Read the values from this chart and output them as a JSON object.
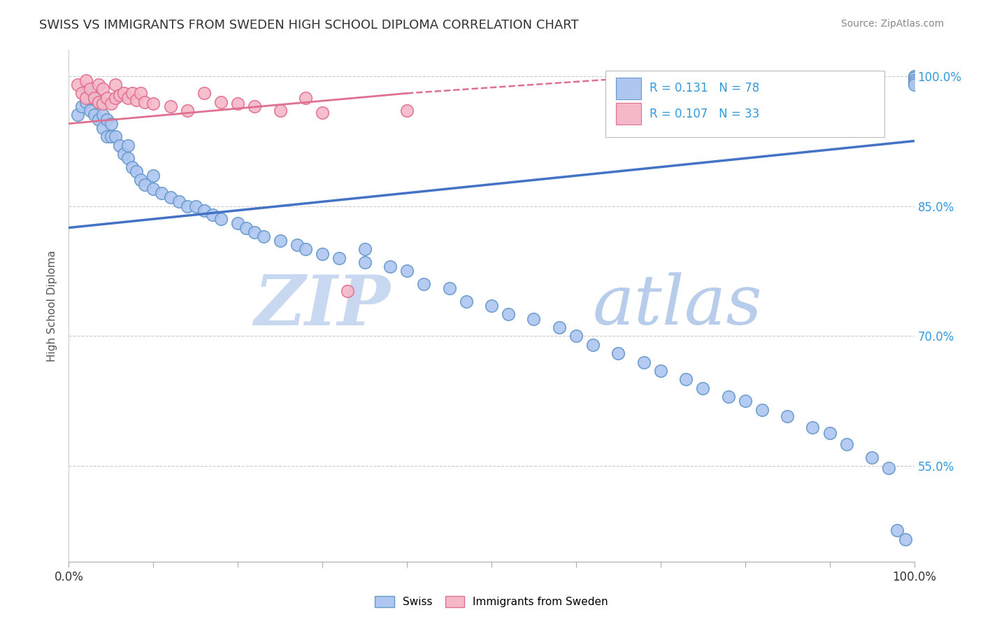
{
  "title": "SWISS VS IMMIGRANTS FROM SWEDEN HIGH SCHOOL DIPLOMA CORRELATION CHART",
  "source_text": "Source: ZipAtlas.com",
  "ylabel": "High School Diploma",
  "legend_swiss": "Swiss",
  "legend_immigrants": "Immigrants from Sweden",
  "R_swiss": 0.131,
  "N_swiss": 78,
  "R_immigrants": 0.107,
  "N_immigrants": 33,
  "swiss_color": "#aec6f0",
  "swiss_edge_color": "#6699cc",
  "immigrants_color": "#f5b8c8",
  "immigrants_edge_color": "#e07090",
  "swiss_line_color": "#4472c4",
  "immigrants_line_color": "#e07090",
  "watermark_zip_color": "#c8d8ee",
  "watermark_atlas_color": "#b0c8e8",
  "background_color": "#ffffff",
  "grid_color": "#cccccc",
  "xlim": [
    0.0,
    1.0
  ],
  "ylim": [
    0.44,
    1.03
  ],
  "yticks": [
    0.55,
    0.7,
    0.85,
    1.0
  ],
  "ytick_labels": [
    "55.0%",
    "70.0%",
    "85.0%",
    "100.0%"
  ],
  "swiss_line_x0": 0.0,
  "swiss_line_y0": 0.825,
  "swiss_line_x1": 1.0,
  "swiss_line_y1": 0.925,
  "imm_line_x0": 0.0,
  "imm_line_y0": 0.945,
  "imm_line_x1": 0.4,
  "imm_line_y1": 0.98,
  "swiss_x": [
    0.01,
    0.015,
    0.02,
    0.02,
    0.025,
    0.025,
    0.03,
    0.03,
    0.035,
    0.035,
    0.04,
    0.04,
    0.045,
    0.045,
    0.05,
    0.05,
    0.055,
    0.06,
    0.065,
    0.07,
    0.07,
    0.075,
    0.08,
    0.085,
    0.09,
    0.1,
    0.1,
    0.11,
    0.12,
    0.13,
    0.14,
    0.15,
    0.16,
    0.17,
    0.18,
    0.2,
    0.21,
    0.22,
    0.23,
    0.25,
    0.27,
    0.28,
    0.3,
    0.32,
    0.35,
    0.35,
    0.38,
    0.4,
    0.42,
    0.45,
    0.47,
    0.5,
    0.52,
    0.55,
    0.58,
    0.6,
    0.62,
    0.65,
    0.68,
    0.7,
    0.73,
    0.75,
    0.78,
    0.8,
    0.82,
    0.85,
    0.88,
    0.9,
    0.92,
    0.95,
    0.97,
    0.98,
    0.99,
    1.0,
    1.0,
    1.0,
    1.0,
    1.0
  ],
  "swiss_y": [
    0.955,
    0.965,
    0.97,
    0.985,
    0.96,
    0.975,
    0.955,
    0.975,
    0.95,
    0.97,
    0.94,
    0.955,
    0.93,
    0.95,
    0.93,
    0.945,
    0.93,
    0.92,
    0.91,
    0.905,
    0.92,
    0.895,
    0.89,
    0.88,
    0.875,
    0.87,
    0.885,
    0.865,
    0.86,
    0.855,
    0.85,
    0.85,
    0.845,
    0.84,
    0.835,
    0.83,
    0.825,
    0.82,
    0.815,
    0.81,
    0.805,
    0.8,
    0.795,
    0.79,
    0.785,
    0.8,
    0.78,
    0.775,
    0.76,
    0.755,
    0.74,
    0.735,
    0.725,
    0.72,
    0.71,
    0.7,
    0.69,
    0.68,
    0.67,
    0.66,
    0.65,
    0.64,
    0.63,
    0.625,
    0.615,
    0.608,
    0.595,
    0.588,
    0.575,
    0.56,
    0.548,
    0.476,
    0.466,
    1.0,
    0.998,
    0.995,
    0.992,
    0.99
  ],
  "imm_x": [
    0.01,
    0.015,
    0.02,
    0.02,
    0.025,
    0.03,
    0.035,
    0.035,
    0.04,
    0.04,
    0.045,
    0.05,
    0.055,
    0.055,
    0.06,
    0.065,
    0.07,
    0.075,
    0.08,
    0.085,
    0.09,
    0.1,
    0.12,
    0.14,
    0.16,
    0.18,
    0.2,
    0.22,
    0.25,
    0.28,
    0.3,
    0.33,
    0.4
  ],
  "imm_y": [
    0.99,
    0.98,
    0.975,
    0.995,
    0.985,
    0.975,
    0.97,
    0.99,
    0.968,
    0.985,
    0.975,
    0.968,
    0.975,
    0.99,
    0.978,
    0.98,
    0.975,
    0.98,
    0.972,
    0.98,
    0.97,
    0.968,
    0.965,
    0.96,
    0.98,
    0.97,
    0.968,
    0.965,
    0.96,
    0.975,
    0.958,
    0.752,
    0.96
  ]
}
